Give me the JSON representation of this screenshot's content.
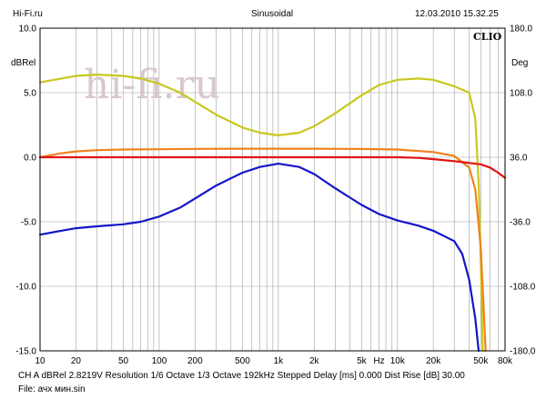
{
  "header": {
    "site": "Hi-Fi.ru",
    "mode": "Sinusoidal",
    "datetime": "12.03.2010 15.32.25"
  },
  "watermark": "hi-fi.ru",
  "logo": "CLIO",
  "footer": {
    "line1": "CH A   dBRel 2.8219V  Resolution 1/6 Octave   1/3 Octave   192kHz   Stepped      Delay [ms] 0.000     Dist Rise [dB] 30.00",
    "line2": "File: ачх мин.sin"
  },
  "chart_data": {
    "type": "line",
    "x_scale": "log",
    "xlim": [
      10,
      80000
    ],
    "x_ticks": [
      {
        "v": 10,
        "label": "10"
      },
      {
        "v": 20,
        "label": "20"
      },
      {
        "v": 50,
        "label": "50"
      },
      {
        "v": 100,
        "label": "100"
      },
      {
        "v": 200,
        "label": "200"
      },
      {
        "v": 500,
        "label": "500"
      },
      {
        "v": 1000,
        "label": "1k"
      },
      {
        "v": 2000,
        "label": "2k"
      },
      {
        "v": 5000,
        "label": "5k"
      },
      {
        "v": 7000,
        "label": "Hz"
      },
      {
        "v": 10000,
        "label": "10k"
      },
      {
        "v": 20000,
        "label": "20k"
      },
      {
        "v": 50000,
        "label": "50k"
      },
      {
        "v": 80000,
        "label": "80k"
      }
    ],
    "ylabel_left": "dBRel",
    "ylabel_right": "Deg",
    "ylim_left": [
      -15,
      10
    ],
    "ylim_right": [
      -180,
      180
    ],
    "y_ticks_left": [
      "10.0",
      "5.0",
      "0.0",
      "-5.0",
      "-10.0",
      "-15.0"
    ],
    "y_ticks_right": [
      "180.0",
      "108.0",
      "36.0",
      "-36.0",
      "-108.0",
      "-180.0"
    ],
    "grid": true,
    "series": [
      {
        "color": "#c8c81e",
        "axis": "left",
        "points": [
          [
            10,
            5.8
          ],
          [
            15,
            6.1
          ],
          [
            20,
            6.3
          ],
          [
            30,
            6.4
          ],
          [
            50,
            6.3
          ],
          [
            70,
            6.1
          ],
          [
            100,
            5.7
          ],
          [
            150,
            5.0
          ],
          [
            200,
            4.3
          ],
          [
            300,
            3.3
          ],
          [
            500,
            2.3
          ],
          [
            700,
            1.9
          ],
          [
            1000,
            1.7
          ],
          [
            1500,
            1.9
          ],
          [
            2000,
            2.4
          ],
          [
            3000,
            3.4
          ],
          [
            5000,
            4.8
          ],
          [
            7000,
            5.6
          ],
          [
            10000,
            6.0
          ],
          [
            15000,
            6.1
          ],
          [
            20000,
            6.0
          ],
          [
            30000,
            5.5
          ],
          [
            40000,
            5.0
          ],
          [
            45000,
            3.0
          ],
          [
            48000,
            -2.0
          ],
          [
            50000,
            -8.0
          ],
          [
            52000,
            -15.0
          ]
        ]
      },
      {
        "color": "#f0821e",
        "axis": "left",
        "points": [
          [
            10,
            0.0
          ],
          [
            15,
            0.3
          ],
          [
            20,
            0.45
          ],
          [
            30,
            0.55
          ],
          [
            50,
            0.6
          ],
          [
            100,
            0.62
          ],
          [
            200,
            0.65
          ],
          [
            500,
            0.66
          ],
          [
            1000,
            0.66
          ],
          [
            2000,
            0.66
          ],
          [
            5000,
            0.64
          ],
          [
            10000,
            0.6
          ],
          [
            20000,
            0.4
          ],
          [
            30000,
            0.1
          ],
          [
            40000,
            -0.8
          ],
          [
            45000,
            -2.5
          ],
          [
            50000,
            -7.0
          ],
          [
            55000,
            -15.0
          ]
        ]
      },
      {
        "color": "#e01414",
        "axis": "left",
        "points": [
          [
            10,
            0.0
          ],
          [
            100,
            0.0
          ],
          [
            1000,
            0.0
          ],
          [
            5000,
            0.0
          ],
          [
            10000,
            0.0
          ],
          [
            15000,
            -0.05
          ],
          [
            20000,
            -0.15
          ],
          [
            30000,
            -0.3
          ],
          [
            50000,
            -0.55
          ],
          [
            60000,
            -0.8
          ],
          [
            70000,
            -1.2
          ],
          [
            80000,
            -1.6
          ]
        ]
      },
      {
        "color": "#1414c8",
        "axis": "left",
        "points": [
          [
            10,
            -6.0
          ],
          [
            15,
            -5.7
          ],
          [
            20,
            -5.5
          ],
          [
            30,
            -5.35
          ],
          [
            50,
            -5.2
          ],
          [
            70,
            -5.0
          ],
          [
            100,
            -4.6
          ],
          [
            150,
            -3.9
          ],
          [
            200,
            -3.2
          ],
          [
            300,
            -2.2
          ],
          [
            500,
            -1.2
          ],
          [
            700,
            -0.75
          ],
          [
            1000,
            -0.5
          ],
          [
            1500,
            -0.75
          ],
          [
            2000,
            -1.3
          ],
          [
            3000,
            -2.4
          ],
          [
            5000,
            -3.7
          ],
          [
            7000,
            -4.4
          ],
          [
            10000,
            -4.9
          ],
          [
            15000,
            -5.3
          ],
          [
            20000,
            -5.7
          ],
          [
            30000,
            -6.5
          ],
          [
            35000,
            -7.5
          ],
          [
            40000,
            -9.5
          ],
          [
            45000,
            -12.5
          ],
          [
            48000,
            -15.0
          ]
        ]
      }
    ]
  }
}
